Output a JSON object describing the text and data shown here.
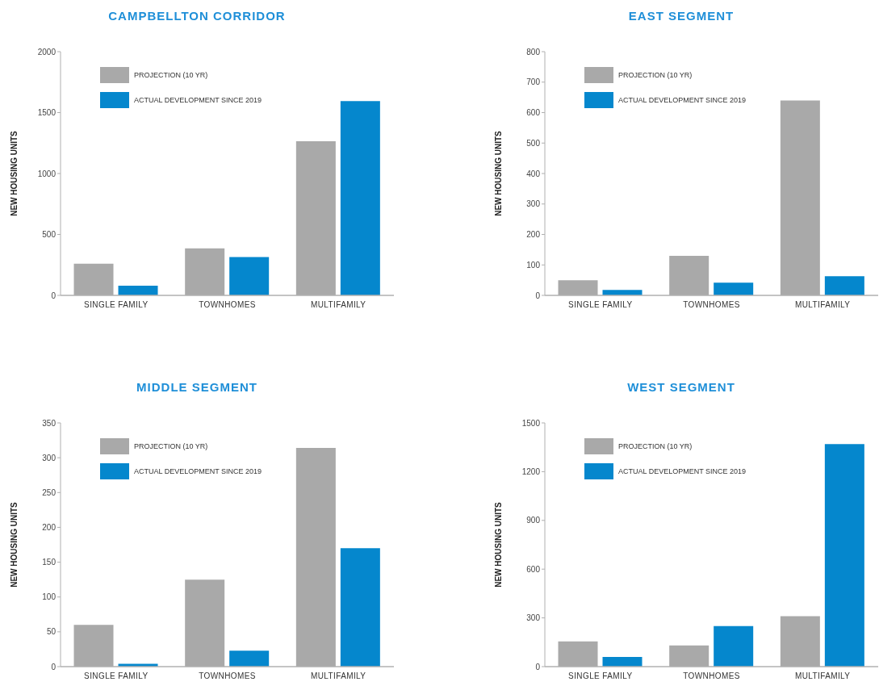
{
  "chart_data": [
    {
      "type": "bar",
      "title": "CAMPBELLTON CORRIDOR",
      "ylabel": "NEW HOUSING UNITS",
      "categories": [
        "SINGLE FAMILY",
        "TOWNHOMES",
        "MULTIFAMILY"
      ],
      "series": [
        {
          "name": "PROJECTION (10 YR)",
          "color": "#a9a9a9",
          "values": [
            260,
            385,
            1265
          ]
        },
        {
          "name": "ACTUAL DEVELOPMENT SINCE 2019",
          "color": "#0587cd",
          "values": [
            80,
            315,
            1595
          ]
        }
      ],
      "ylim": [
        0,
        2000
      ],
      "yticks": [
        0,
        500,
        1000,
        1500,
        2000
      ],
      "legend": "top left"
    },
    {
      "type": "bar",
      "title": "EAST SEGMENT",
      "ylabel": "NEW HOUSING UNITS",
      "categories": [
        "SINGLE FAMILY",
        "TOWNHOMES",
        "MULTIFAMILY"
      ],
      "series": [
        {
          "name": "PROJECTION (10 YR)",
          "color": "#a9a9a9",
          "values": [
            50,
            130,
            640
          ]
        },
        {
          "name": "ACTUAL DEVELOPMENT SINCE 2019",
          "color": "#0587cd",
          "values": [
            18,
            42,
            63
          ]
        }
      ],
      "ylim": [
        0,
        800
      ],
      "yticks": [
        0,
        100,
        200,
        300,
        400,
        500,
        600,
        700,
        800
      ],
      "legend": "top left"
    },
    {
      "type": "bar",
      "title": "MIDDLE SEGMENT",
      "ylabel": "NEW HOUSING UNITS",
      "categories": [
        "SINGLE FAMILY",
        "TOWNHOMES",
        "MULTIFAMILY"
      ],
      "series": [
        {
          "name": "PROJECTION (10 YR)",
          "color": "#a9a9a9",
          "values": [
            60,
            125,
            314
          ]
        },
        {
          "name": "ACTUAL DEVELOPMENT SINCE 2019",
          "color": "#0587cd",
          "values": [
            4,
            23,
            170
          ]
        }
      ],
      "ylim": [
        0,
        350
      ],
      "yticks": [
        0,
        50,
        100,
        150,
        200,
        250,
        300,
        350
      ],
      "legend": "top left"
    },
    {
      "type": "bar",
      "title": "WEST SEGMENT",
      "ylabel": "NEW HOUSING UNITS",
      "categories": [
        "SINGLE FAMILY",
        "TOWNHOMES",
        "MULTIFAMILY"
      ],
      "series": [
        {
          "name": "PROJECTION (10 YR)",
          "color": "#a9a9a9",
          "values": [
            155,
            130,
            310
          ]
        },
        {
          "name": "ACTUAL DEVELOPMENT SINCE 2019",
          "color": "#0587cd",
          "values": [
            60,
            250,
            1370
          ]
        }
      ],
      "ylim": [
        0,
        1500
      ],
      "yticks": [
        0,
        300,
        600,
        900,
        1200,
        1500
      ],
      "legend": "top left"
    }
  ]
}
